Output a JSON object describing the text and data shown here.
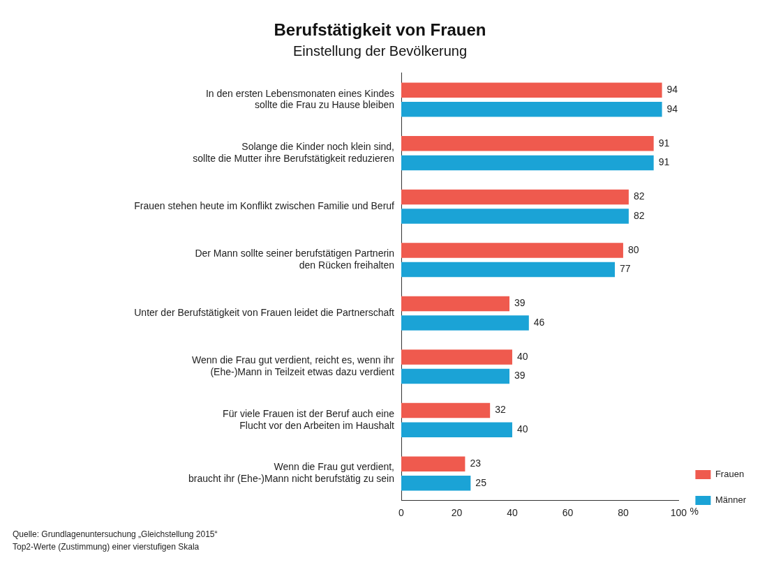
{
  "chart_data": {
    "type": "bar",
    "orientation": "horizontal",
    "title": "Berufstätigkeit von Frauen",
    "subtitle": "Einstellung der Bevölkerung",
    "xlabel": "%",
    "categories": [
      "In den ersten Lebensmonaten eines Kindes\nsollte die Frau zu Hause bleiben",
      "Solange die Kinder noch klein sind,\nsollte die Mutter ihre Berufstätigkeit reduzieren",
      "Frauen stehen heute im Konflikt zwischen Familie und Beruf",
      "Der Mann sollte seiner berufstätigen Partnerin\nden Rücken freihalten",
      "Unter der Berufstätigkeit von Frauen leidet die Partnerschaft",
      "Wenn die Frau gut verdient, reicht es, wenn ihr\n(Ehe-)Mann in Teilzeit etwas dazu verdient",
      "Für viele Frauen ist der Beruf auch eine\nFlucht vor den Arbeiten im Haushalt",
      "Wenn die Frau gut verdient,\nbraucht ihr (Ehe-)Mann nicht berufstätig zu sein"
    ],
    "series": [
      {
        "name": "Frauen",
        "color": "#ef5a4e",
        "values": [
          94,
          91,
          82,
          80,
          39,
          40,
          32,
          23
        ]
      },
      {
        "name": "Männer",
        "color": "#1ba3d6",
        "values": [
          94,
          91,
          82,
          77,
          46,
          39,
          40,
          25
        ]
      }
    ],
    "xlim": [
      0,
      100
    ],
    "xticks": [
      0,
      20,
      40,
      60,
      80,
      100
    ],
    "grid": false,
    "legend": "right",
    "data_labels": true,
    "annotations": [
      "Quelle: Grundlagenuntersuchung „Gleichstellung 2015“",
      "Top2-Werte (Zustimmung) einer vierstufigen Skala"
    ]
  }
}
